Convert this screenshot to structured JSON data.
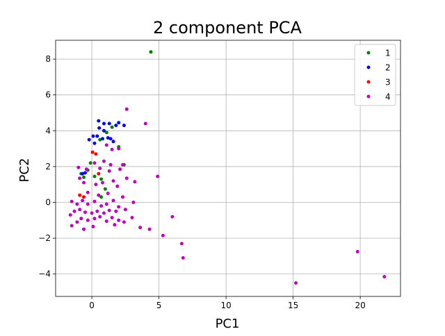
{
  "chart_data": {
    "type": "scatter",
    "title": "2 component PCA",
    "xlabel": "PC1",
    "ylabel": "PC2",
    "xlim": [
      -2.7,
      23.0
    ],
    "ylim": [
      -5.25,
      9.05
    ],
    "xticks": [
      0,
      5,
      10,
      15,
      20
    ],
    "yticks": [
      -4,
      -2,
      0,
      2,
      4,
      6,
      8
    ],
    "grid": true,
    "legend_position": "top-right",
    "series": [
      {
        "name": "1",
        "color": "#008000",
        "points": [
          [
            4.4,
            8.4
          ],
          [
            1.5,
            4.2
          ],
          [
            1.1,
            3.9
          ],
          [
            0.6,
            3.5
          ],
          [
            2.0,
            3.1
          ],
          [
            0.4,
            3.7
          ],
          [
            2.4,
            2.1
          ],
          [
            -0.1,
            2.2
          ],
          [
            -0.3,
            1.8
          ],
          [
            0.2,
            1.45
          ],
          [
            0.7,
            1.3
          ],
          [
            1.0,
            0.75
          ],
          [
            0.7,
            0.3
          ],
          [
            -0.8,
            1.6
          ],
          [
            -0.6,
            1.4
          ]
        ]
      },
      {
        "name": "2",
        "color": "#0000ff",
        "points": [
          [
            0.5,
            4.55
          ],
          [
            0.9,
            4.4
          ],
          [
            1.3,
            4.4
          ],
          [
            0.55,
            4.15
          ],
          [
            0.9,
            4.0
          ],
          [
            1.8,
            4.3
          ],
          [
            2.4,
            4.3
          ],
          [
            2.0,
            4.45
          ],
          [
            0.1,
            3.7
          ],
          [
            0.4,
            3.7
          ],
          [
            0.8,
            3.55
          ],
          [
            1.2,
            3.6
          ],
          [
            1.4,
            3.55
          ],
          [
            -0.2,
            3.5
          ],
          [
            0.2,
            3.3
          ],
          [
            1.6,
            3.4
          ],
          [
            -0.5,
            1.65
          ],
          [
            -0.7,
            1.6
          ]
        ]
      },
      {
        "name": "3",
        "color": "#ff0000",
        "points": [
          [
            0.05,
            2.8
          ],
          [
            0.3,
            2.7
          ],
          [
            0.5,
            1.6
          ],
          [
            -0.9,
            0.4
          ],
          [
            -0.6,
            0.3
          ]
        ]
      },
      {
        "name": "4",
        "color": "#bf00bf",
        "points": [
          [
            2.6,
            5.2
          ],
          [
            4.0,
            4.4
          ],
          [
            1.1,
            3.2
          ],
          [
            1.5,
            2.95
          ],
          [
            2.0,
            3.0
          ],
          [
            0.2,
            2.2
          ],
          [
            0.9,
            2.3
          ],
          [
            1.4,
            2.1
          ],
          [
            2.3,
            2.1
          ],
          [
            -1.0,
            1.95
          ],
          [
            -0.4,
            1.85
          ],
          [
            0.6,
            1.9
          ],
          [
            1.3,
            1.75
          ],
          [
            2.1,
            1.85
          ],
          [
            -0.6,
            1.1
          ],
          [
            -0.9,
            1.35
          ],
          [
            0.3,
            1.0
          ],
          [
            0.8,
            1.1
          ],
          [
            1.6,
            1.2
          ],
          [
            1.9,
            0.9
          ],
          [
            2.6,
            1.35
          ],
          [
            3.2,
            1.15
          ],
          [
            4.9,
            1.45
          ],
          [
            -0.3,
            0.55
          ],
          [
            0.5,
            0.4
          ],
          [
            1.2,
            0.5
          ],
          [
            2.3,
            0.3
          ],
          [
            -1.5,
            0.05
          ],
          [
            -1.1,
            -0.1
          ],
          [
            -0.7,
            0.1
          ],
          [
            -0.3,
            -0.1
          ],
          [
            0.2,
            0.05
          ],
          [
            0.7,
            -0.2
          ],
          [
            1.1,
            -0.1
          ],
          [
            1.6,
            0.1
          ],
          [
            2.0,
            -0.25
          ],
          [
            3.1,
            0.0
          ],
          [
            -1.6,
            -0.7
          ],
          [
            -1.3,
            -0.5
          ],
          [
            -0.9,
            -0.4
          ],
          [
            -0.5,
            -0.55
          ],
          [
            0.0,
            -0.6
          ],
          [
            0.4,
            -0.5
          ],
          [
            0.9,
            -0.6
          ],
          [
            1.3,
            -0.45
          ],
          [
            1.8,
            -0.5
          ],
          [
            2.5,
            -0.4
          ],
          [
            -1.5,
            -1.3
          ],
          [
            -1.1,
            -1.1
          ],
          [
            -0.8,
            -0.9
          ],
          [
            -0.3,
            -1.0
          ],
          [
            0.2,
            -0.9
          ],
          [
            0.6,
            -0.8
          ],
          [
            1.1,
            -1.05
          ],
          [
            1.5,
            -0.85
          ],
          [
            2.0,
            -1.0
          ],
          [
            2.4,
            -1.1
          ],
          [
            3.0,
            -0.85
          ],
          [
            3.6,
            -1.4
          ],
          [
            -0.6,
            -1.5
          ],
          [
            0.1,
            -1.35
          ],
          [
            1.7,
            -1.25
          ],
          [
            4.3,
            -1.5
          ],
          [
            5.3,
            -1.85
          ],
          [
            6.0,
            -0.8
          ],
          [
            6.7,
            -2.3
          ],
          [
            6.8,
            -3.1
          ],
          [
            15.2,
            -4.5
          ],
          [
            19.8,
            -2.75
          ],
          [
            21.8,
            -4.15
          ]
        ]
      }
    ]
  }
}
